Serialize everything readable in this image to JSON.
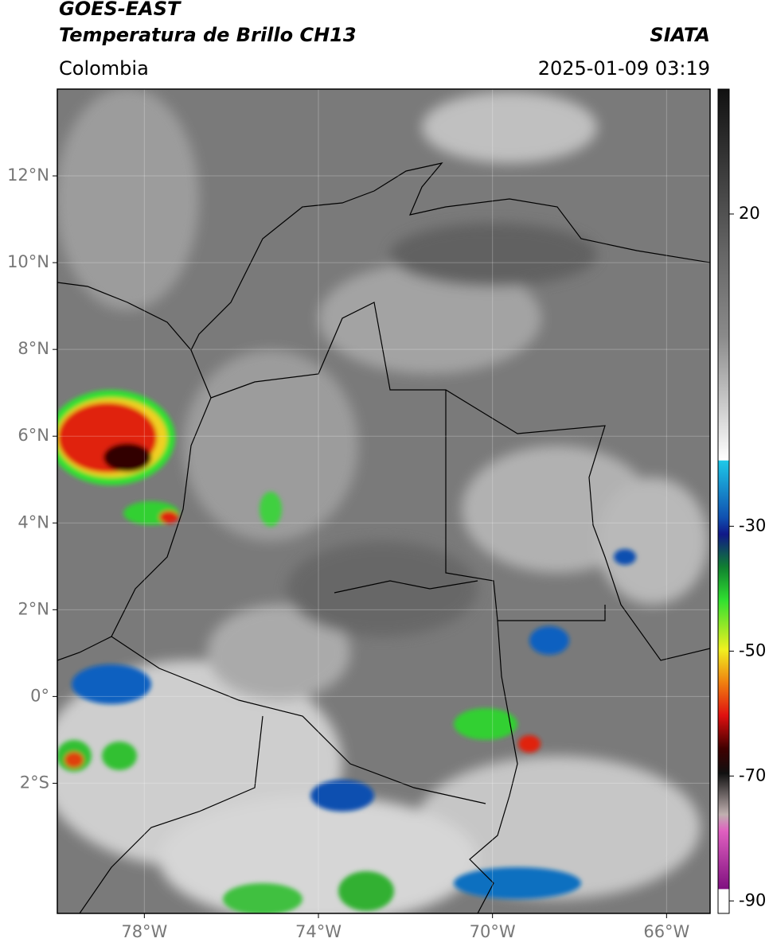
{
  "header": {
    "satellite": "GOES-EAST",
    "product": "Temperatura de Brillo CH13",
    "source": "SIATA",
    "region": "Colombia",
    "timestamp": "2025-01-09 03:19"
  },
  "map": {
    "lonlim": [
      -80,
      -65
    ],
    "latlim": [
      -5,
      14
    ],
    "xticks": [
      {
        "value": -78,
        "label": "78°W"
      },
      {
        "value": -74,
        "label": "74°W"
      },
      {
        "value": -70,
        "label": "70°W"
      },
      {
        "value": -66,
        "label": "66°W"
      }
    ],
    "yticks": [
      {
        "value": 12,
        "label": "12°N"
      },
      {
        "value": 10,
        "label": "10°N"
      },
      {
        "value": 8,
        "label": "8°N"
      },
      {
        "value": 6,
        "label": "6°N"
      },
      {
        "value": 4,
        "label": "4°N"
      },
      {
        "value": 2,
        "label": "2°N"
      },
      {
        "value": 0,
        "label": "0°"
      },
      {
        "value": -2,
        "label": "2°S"
      }
    ],
    "grid": true
  },
  "colorbar": {
    "lim": [
      -92,
      40
    ],
    "ticks": [
      20,
      -30,
      -50,
      -70,
      -90
    ]
  }
}
